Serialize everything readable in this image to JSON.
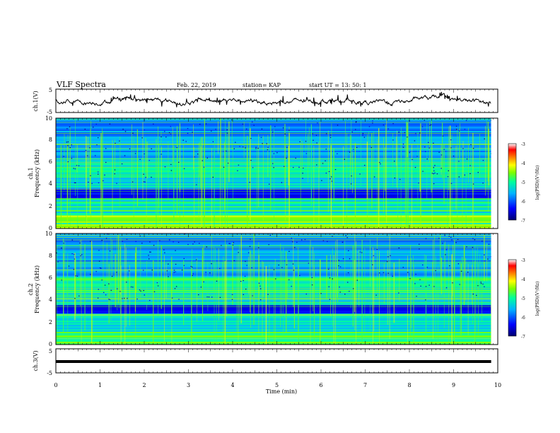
{
  "header": {
    "title": "VLF Spectra",
    "date": "Feb. 22, 2019",
    "station": "station= KAP",
    "start": "start  UT =   13: 50: 1"
  },
  "chart_data": [
    {
      "type": "line",
      "name": "ch1-waveform",
      "ylabel": "ch.1(V)",
      "ylim": [
        -5,
        5
      ],
      "xlim": [
        0,
        10
      ],
      "ytick_labels": [
        "5",
        "-5"
      ],
      "color": "#000000",
      "data_extent_x": [
        0,
        9.85
      ]
    },
    {
      "type": "heatmap",
      "name": "ch1-spectrogram",
      "ylabel": "ch.1\nFrequency (kHz)",
      "ylim": [
        0,
        10
      ],
      "xlim": [
        0,
        10
      ],
      "ytick_labels": [
        "0",
        "2",
        "4",
        "6",
        "8",
        "10"
      ],
      "colorbar": {
        "label": "log(PSD)(V²/Hz)",
        "range": [
          -7,
          -3
        ],
        "tick_labels": [
          "-3",
          "-4",
          "-5",
          "-6",
          "-7"
        ]
      }
    },
    {
      "type": "heatmap",
      "name": "ch2-spectrogram",
      "ylabel": "ch.2\nFrequency (kHz)",
      "ylim": [
        0,
        10
      ],
      "xlim": [
        0,
        10
      ],
      "ytick_labels": [
        "0",
        "2",
        "4",
        "6",
        "8",
        "10"
      ],
      "colorbar": {
        "label": "log(PSD)(V²/Hz)",
        "range": [
          -7,
          -3
        ],
        "tick_labels": [
          "-3",
          "-4",
          "-5",
          "-6",
          "-7"
        ]
      }
    },
    {
      "type": "line",
      "name": "ch3-waveform",
      "ylabel": "ch.3(V)",
      "ylim": [
        -5,
        5
      ],
      "xlim": [
        0,
        10
      ],
      "ytick_labels": [
        "5",
        "-5"
      ],
      "series": [
        {
          "x": [
            0,
            9.85
          ],
          "y": [
            -0.3,
            -0.3
          ]
        }
      ],
      "color": "#000000"
    }
  ],
  "xaxis": {
    "label": "Time (min)",
    "tick_labels": [
      "0",
      "1",
      "2",
      "3",
      "4",
      "5",
      "6",
      "7",
      "8",
      "9",
      "10"
    ]
  },
  "colors": {
    "colormap": [
      "#000070",
      "#0000ff",
      "#00b4ff",
      "#00ff9c",
      "#7cff00",
      "#ffff00",
      "#ff8000",
      "#ff0000",
      "#ffffff"
    ]
  }
}
